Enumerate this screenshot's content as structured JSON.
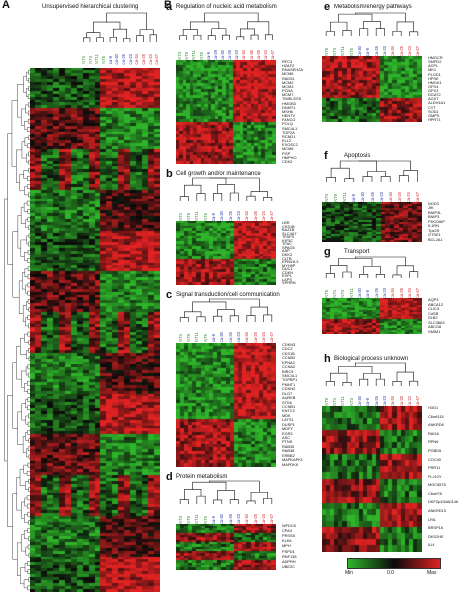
{
  "panel_A": {
    "letter": "A",
    "title": "Unsupervised hierarchical clustering",
    "samples": [
      {
        "name": "NT4",
        "color": "#2a8a2a"
      },
      {
        "name": "NT3",
        "color": "#2a8a2a"
      },
      {
        "name": "NT11",
        "color": "#2a8a2a"
      },
      {
        "name": "NT5",
        "color": "#2a8a2a"
      },
      {
        "name": "ca-9",
        "color": "#2a3aa8"
      },
      {
        "name": "ca-30",
        "color": "#2a3aa8"
      },
      {
        "name": "ca-26",
        "color": "#2a3aa8"
      },
      {
        "name": "ca-23",
        "color": "#2a3aa8"
      },
      {
        "name": "ca-34",
        "color": "#cc2222"
      },
      {
        "name": "ca-25",
        "color": "#cc2222"
      },
      {
        "name": "ca-24",
        "color": "#cc2222"
      },
      {
        "name": "ca-47",
        "color": "#cc2222"
      }
    ]
  },
  "panel_B": {
    "letter": "B"
  },
  "sub_panels": [
    {
      "key": "a",
      "letter": "a",
      "title": "Regulation of nucleic acid metabolism",
      "samples": [
        "NT3",
        "NT9",
        "NT11",
        "NT5",
        "ca-9",
        "ca-29",
        "ca-30",
        "ca-26",
        "ca-23",
        "ca-34",
        "ca-35",
        "ca-25",
        "ca-24",
        "ca-47"
      ],
      "genes": [
        "RFC3",
        "H2AFZ",
        "RNASEH2A",
        "MCM6",
        "RAD51",
        "MCM2",
        "MCM3",
        "PCNA",
        "MCM7",
        "TIMELESS",
        "HMGB3",
        "DNMT1",
        "MSH6",
        "HENTV",
        "FANCG",
        "POLQ",
        "SMC4L1",
        "TOP2A",
        "RCND1",
        "ELL2",
        "EXOSC2",
        "MCM6",
        "PGP",
        "HMPHO",
        "CDK2"
      ]
    },
    {
      "key": "b",
      "letter": "b",
      "title": "Cell growth and/or maintenance",
      "samples": [
        "NT4",
        "NT9",
        "NT11",
        "NT5",
        "ca-9",
        "ca-30",
        "ca-26",
        "ca-23",
        "ca-34",
        "ca-25",
        "ca-24",
        "ca-47"
      ],
      "genes": [
        "LBR",
        "CKS1B",
        "BAZ1B",
        "SLC4A7",
        "TFAP3",
        "KIF3C",
        "TFAC",
        "SPAG5",
        "ASP",
        "DKK2",
        "CLTB",
        "EPB41L3",
        "MYH9P",
        "DUC1",
        "CDKN",
        "EVPL",
        "LAPS",
        "SPRRN"
      ]
    },
    {
      "key": "c",
      "letter": "c",
      "title": "Signal transduction/cell communication",
      "samples": [
        "NT4",
        "NT9",
        "NT11",
        "NT5",
        "ca-9",
        "ca-30",
        "ca-26",
        "ca-23",
        "ca-34",
        "ca-25",
        "ca-24",
        "ca-47"
      ],
      "genes": [
        "CDKN3",
        "CDC2",
        "CKS1B",
        "CCNB2",
        "KPNA2",
        "CCNA2",
        "BIRC5",
        "SMC4L1",
        "TOPBP1",
        "PMNT1",
        "CDKN2",
        "DLG7",
        "AURKB",
        "STK6",
        "CCNB1",
        "KNTC2",
        "MDK",
        "LATS1",
        "DUSP1",
        "MDFY",
        "EGR3",
        "ASC",
        "PTNS",
        "RAB35",
        "RAB38",
        "ERBB2",
        "MAPKAPK1",
        "MAPDKK"
      ]
    },
    {
      "key": "d",
      "letter": "d",
      "title": "Protein metabolism",
      "samples": [
        "NT3",
        "NT9",
        "NT11",
        "NT5",
        "ca-9",
        "ca-30",
        "ca-26",
        "ca-23",
        "ca-34",
        "ca-25",
        "ca-24",
        "ca-47"
      ],
      "genes": [
        "WFDC5",
        "CPA4",
        "PRSS8",
        "KLK6",
        "MPH",
        "PSPD1",
        "RNF138",
        "ADPRH",
        "UBE2C"
      ]
    },
    {
      "key": "e",
      "letter": "e",
      "title": "Metabolism/energy pathways",
      "samples": [
        "NT9",
        "NT3",
        "NT11",
        "NT5",
        "ca-30",
        "ca-9",
        "ca-26",
        "ca-23",
        "ca-34",
        "ca-25",
        "ca-24",
        "ca-47"
      ],
      "genes": [
        "HMGCR",
        "SMPD2",
        "ACPL",
        "MK1",
        "PLOD1",
        "HPSE",
        "HMGK1",
        "GPX4",
        "GPX3",
        "DGAT2",
        "AGXT",
        "ALDH1A1",
        "CYT",
        "SOD1",
        "GMPS",
        "HPRT1"
      ]
    },
    {
      "key": "f",
      "letter": "f",
      "title": "Apoptosis",
      "samples": [
        "NT3",
        "NT9",
        "NT11",
        "ca-9",
        "ca-30",
        "ca-26",
        "ca-23",
        "ca-34",
        "ca-25",
        "ca-24",
        "ca-47"
      ],
      "genes": [
        "NOD3",
        "JIK",
        "BNIP3L",
        "BNIP3",
        "PDCD6IP",
        "IL1RN",
        "Tps2S",
        "GTSE1",
        "BCL2A1"
      ]
    },
    {
      "key": "g",
      "letter": "g",
      "title": "Transport",
      "samples": [
        "NT9",
        "NT4",
        "NT3",
        "NT11",
        "ca-30",
        "ca-9",
        "ca-26",
        "ca-23",
        "ca-34",
        "ca-25",
        "ca-24",
        "ca-47"
      ],
      "genes": [
        "AQP3",
        "ABCA12",
        "CLIC3",
        "CdSB",
        "SLB2",
        "SLC38A3",
        "ABCG8",
        "SMIM1"
      ]
    },
    {
      "key": "h",
      "letter": "h",
      "title": "Biological process unknown",
      "samples": [
        "NT9",
        "NT4",
        "NT11",
        "NT3",
        "ca-30",
        "ca-9",
        "ca-26",
        "ca-23",
        "ca-34",
        "ca-25",
        "ca-24",
        "ca-47"
      ],
      "genes": [
        "H3G1",
        "C6orf115",
        "ANKRD6",
        "RAI16",
        "RPN6",
        "PGBD5",
        "COC40",
        "PRR11",
        "FLJ10Y",
        "MGC5576",
        "C6orf78",
        "DKFZp434A0146",
        "ANKRD13",
        "LRIL",
        "BRSP16",
        "DKS2HE",
        "ILI4"
      ]
    }
  ],
  "legend": {
    "min_label": "Min",
    "mid_label": "0.0",
    "max_label": "Max"
  },
  "colors": {
    "low": "#2fb52a",
    "mid": "#0a0a0a",
    "high": "#e02222",
    "normal": "#2a8a2a",
    "cancer_a": "#2a3aa8",
    "cancer_b": "#cc2222"
  }
}
